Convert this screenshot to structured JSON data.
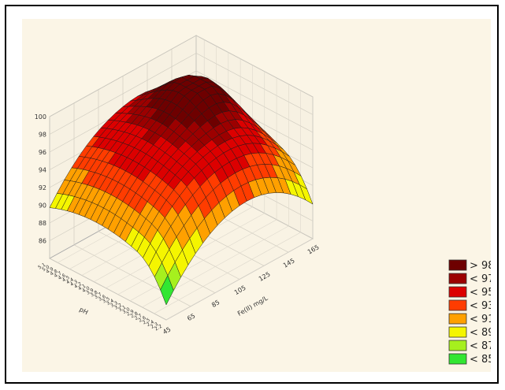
{
  "chart_data": {
    "type": "surface3d",
    "title": "",
    "xlabel": "Fe(II) mg/L",
    "ylabel": "pH",
    "zlabel": "",
    "x_ticks": [
      "45",
      "65",
      "85",
      "105",
      "125",
      "145",
      "165"
    ],
    "y_ticks": [
      "2.2",
      "2.3",
      "2.4",
      "2.5",
      "2.6",
      "2.7",
      "2.8",
      "2.9",
      "3.0",
      "3.1",
      "3.2",
      "3.3",
      "3.4",
      "3.5",
      "3.6",
      "3.7",
      "3.8",
      "3.9",
      "4.0",
      "4.1",
      "4.2",
      "4.3",
      "4.4",
      "4.5",
      "4.6",
      "4.7",
      "4.8",
      "4.9",
      "5.0",
      "5.1"
    ],
    "z_ticks": [
      "86",
      "88",
      "90",
      "92",
      "94",
      "96",
      "98",
      "100"
    ],
    "zlim": [
      84,
      100
    ],
    "xlim": [
      45,
      165
    ],
    "ylim": [
      2.2,
      5.1
    ],
    "grid": true,
    "legend_position": "bottom-right",
    "legend": [
      {
        "label": "> 98",
        "color": "#6e0000"
      },
      {
        "label": "< 97",
        "color": "#9c0000"
      },
      {
        "label": "< 95",
        "color": "#dc0000"
      },
      {
        "label": "< 93",
        "color": "#ff3c00"
      },
      {
        "label": "< 91",
        "color": "#ffa000"
      },
      {
        "label": "< 89",
        "color": "#f5f500"
      },
      {
        "label": "< 87",
        "color": "#a6f01e"
      },
      {
        "label": "< 85",
        "color": "#32e632"
      }
    ]
  }
}
